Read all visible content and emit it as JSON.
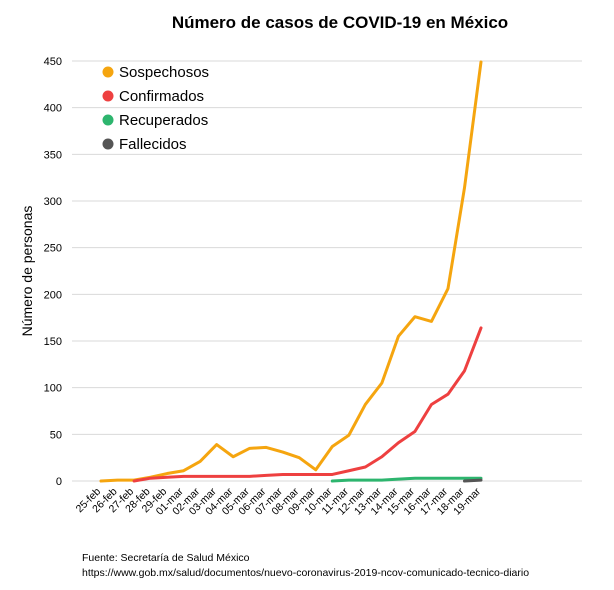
{
  "chart_data": {
    "type": "line",
    "title": "Número de casos de COVID-19 en México",
    "ylabel": "Número de personas",
    "xlabel": "",
    "ylim": [
      0,
      450
    ],
    "yticks": [
      0,
      50,
      100,
      150,
      200,
      250,
      300,
      350,
      400,
      450
    ],
    "grid": "horizontal",
    "legend_position": "top-left",
    "categories": [
      "25-feb",
      "26-feb",
      "27-feb",
      "28-feb",
      "29-feb",
      "01-mar",
      "02-mar",
      "03-mar",
      "04-mar",
      "05-mar",
      "06-mar",
      "07-mar",
      "08-mar",
      "09-mar",
      "10-mar",
      "11-mar",
      "12-mar",
      "13-mar",
      "14-mar",
      "15-mar",
      "16-mar",
      "17-mar",
      "18-mar",
      "19-mar"
    ],
    "series": [
      {
        "name": "Sospechosos",
        "color": "#F5A50F",
        "values": [
          0,
          1,
          1,
          4,
          8,
          11,
          21,
          39,
          26,
          35,
          36,
          31,
          25,
          12,
          37,
          49,
          82,
          105,
          155,
          176,
          171,
          206,
          314,
          449
        ]
      },
      {
        "name": "Confirmados",
        "color": "#EE4040",
        "values": [
          null,
          null,
          0,
          3,
          4,
          5,
          5,
          5,
          5,
          5,
          6,
          7,
          7,
          7,
          7,
          11,
          15,
          26,
          41,
          53,
          82,
          93,
          118,
          164
        ]
      },
      {
        "name": "Recuperados",
        "color": "#2DB56E",
        "values": [
          null,
          null,
          null,
          null,
          null,
          null,
          null,
          null,
          null,
          null,
          null,
          null,
          null,
          null,
          0,
          1,
          1,
          1,
          2,
          3,
          3,
          3,
          3,
          3
        ]
      },
      {
        "name": "Fallecidos",
        "color": "#555555",
        "values": [
          null,
          null,
          null,
          null,
          null,
          null,
          null,
          null,
          null,
          null,
          null,
          null,
          null,
          null,
          null,
          null,
          null,
          null,
          null,
          null,
          null,
          null,
          0,
          1
        ]
      }
    ]
  },
  "footer": {
    "source": "Fuente: Secretaría de Salud México",
    "url": "https://www.gob.mx/salud/documentos/nuevo-coronavirus-2019-ncov-comunicado-tecnico-diario"
  }
}
